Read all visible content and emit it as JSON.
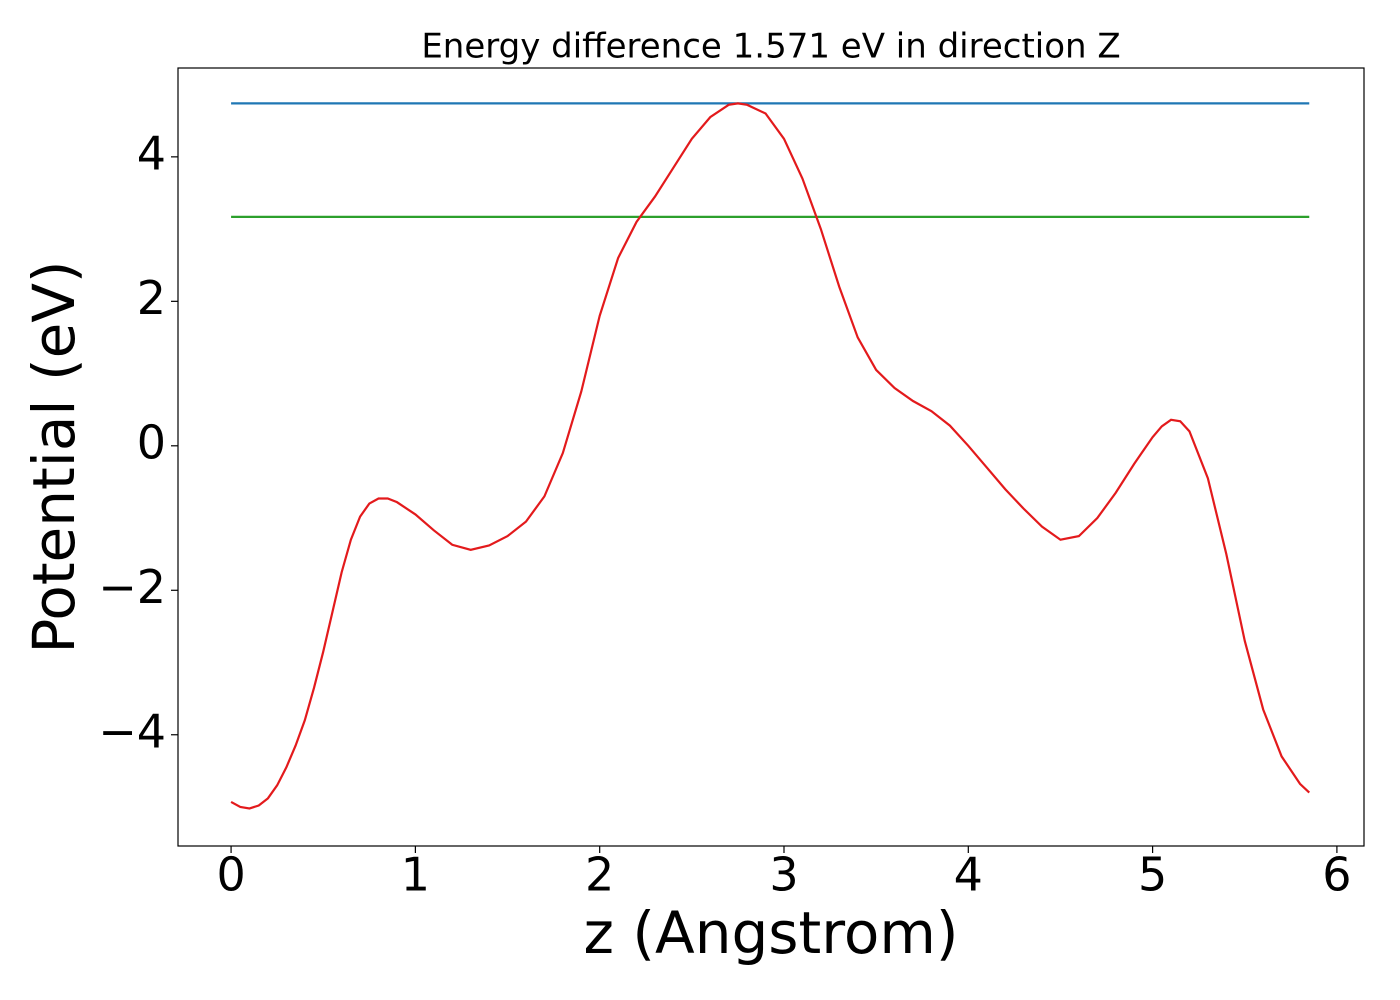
{
  "chart_data": {
    "type": "line",
    "title": "Energy difference 1.571 eV in direction Z",
    "xlabel": "z (Angstrom)",
    "ylabel": "Potential (eV)",
    "xlim": [
      -0.288,
      6.147
    ],
    "ylim": [
      -5.54,
      5.23
    ],
    "xticks": [
      0,
      1,
      2,
      3,
      4,
      5,
      6
    ],
    "yticks": [
      {
        "value": -4,
        "label": "−4"
      },
      {
        "value": -2,
        "label": "−2"
      },
      0,
      2,
      4
    ],
    "series": [
      {
        "color": "#1f77b4",
        "x": [
          0,
          5.85
        ],
        "values": [
          4.74,
          4.74
        ]
      },
      {
        "color": "#2ca02c",
        "x": [
          0,
          5.85
        ],
        "values": [
          3.169,
          3.169
        ]
      },
      {
        "color": "#e31a1c",
        "x": [
          0,
          0.05,
          0.1,
          0.15,
          0.2,
          0.25,
          0.3,
          0.35,
          0.4,
          0.45,
          0.5,
          0.55,
          0.6,
          0.65,
          0.7,
          0.75,
          0.8,
          0.85,
          0.9,
          1.0,
          1.1,
          1.2,
          1.3,
          1.4,
          1.5,
          1.6,
          1.7,
          1.8,
          1.9,
          2.0,
          2.1,
          2.2,
          2.3,
          2.4,
          2.5,
          2.6,
          2.7,
          2.75,
          2.8,
          2.9,
          3.0,
          3.1,
          3.2,
          3.3,
          3.4,
          3.5,
          3.6,
          3.7,
          3.8,
          3.9,
          4.0,
          4.1,
          4.2,
          4.3,
          4.4,
          4.5,
          4.6,
          4.7,
          4.8,
          4.9,
          5.0,
          5.05,
          5.1,
          5.15,
          5.2,
          5.3,
          5.4,
          5.5,
          5.6,
          5.7,
          5.8,
          5.85
        ],
        "values": [
          -4.93,
          -5.0,
          -5.02,
          -4.98,
          -4.88,
          -4.7,
          -4.45,
          -4.15,
          -3.8,
          -3.35,
          -2.85,
          -2.3,
          -1.75,
          -1.3,
          -0.98,
          -0.8,
          -0.73,
          -0.73,
          -0.78,
          -0.95,
          -1.17,
          -1.37,
          -1.44,
          -1.38,
          -1.25,
          -1.05,
          -0.7,
          -0.1,
          0.75,
          1.8,
          2.6,
          3.1,
          3.45,
          3.85,
          4.25,
          4.55,
          4.72,
          4.74,
          4.72,
          4.6,
          4.25,
          3.7,
          3.0,
          2.2,
          1.5,
          1.05,
          0.8,
          0.62,
          0.48,
          0.28,
          0.0,
          -0.3,
          -0.6,
          -0.87,
          -1.12,
          -1.3,
          -1.25,
          -1.0,
          -0.65,
          -0.25,
          0.12,
          0.27,
          0.36,
          0.34,
          0.2,
          -0.45,
          -1.5,
          -2.7,
          -3.65,
          -4.3,
          -4.68,
          -4.8
        ]
      }
    ]
  }
}
